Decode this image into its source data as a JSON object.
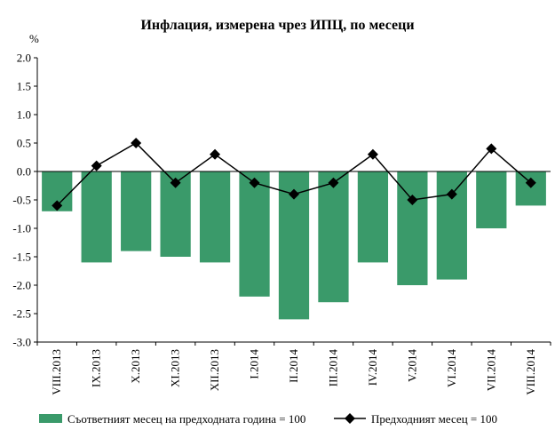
{
  "chart_data": {
    "type": "bar",
    "title": "Инфлация, измерена чрез ИПЦ, по месеци",
    "ylabel": "%",
    "ylim": [
      -3.0,
      2.0
    ],
    "yticks": [
      "2.0",
      "1.5",
      "1.0",
      "0.5",
      "0.0",
      "-0.5",
      "-1.0",
      "-1.5",
      "-2.0",
      "-2.5",
      "-3.0"
    ],
    "categories": [
      "VIII.2013",
      "IX.2013",
      "X.2013",
      "XI.2013",
      "XII.2013",
      "I.2014",
      "II.2014",
      "III.2014",
      "IV.2014",
      "V.2014",
      "VI.2014",
      "VII.2014",
      "VIII.2014"
    ],
    "series": [
      {
        "name": "Съответният месец на предходната година = 100",
        "type": "bar",
        "color": "#3a9a6a",
        "values": [
          -0.7,
          -1.6,
          -1.4,
          -1.5,
          -1.6,
          -2.2,
          -2.6,
          -2.3,
          -1.6,
          -2.0,
          -1.9,
          -1.0,
          -0.6
        ]
      },
      {
        "name": "Предходният месец = 100",
        "type": "line",
        "color": "#000000",
        "marker": "diamond",
        "values": [
          -0.6,
          0.1,
          0.5,
          -0.2,
          0.3,
          -0.2,
          -0.4,
          -0.2,
          0.3,
          -0.5,
          -0.4,
          0.4,
          -0.2
        ]
      }
    ],
    "grid": false,
    "legend": "bottom"
  }
}
